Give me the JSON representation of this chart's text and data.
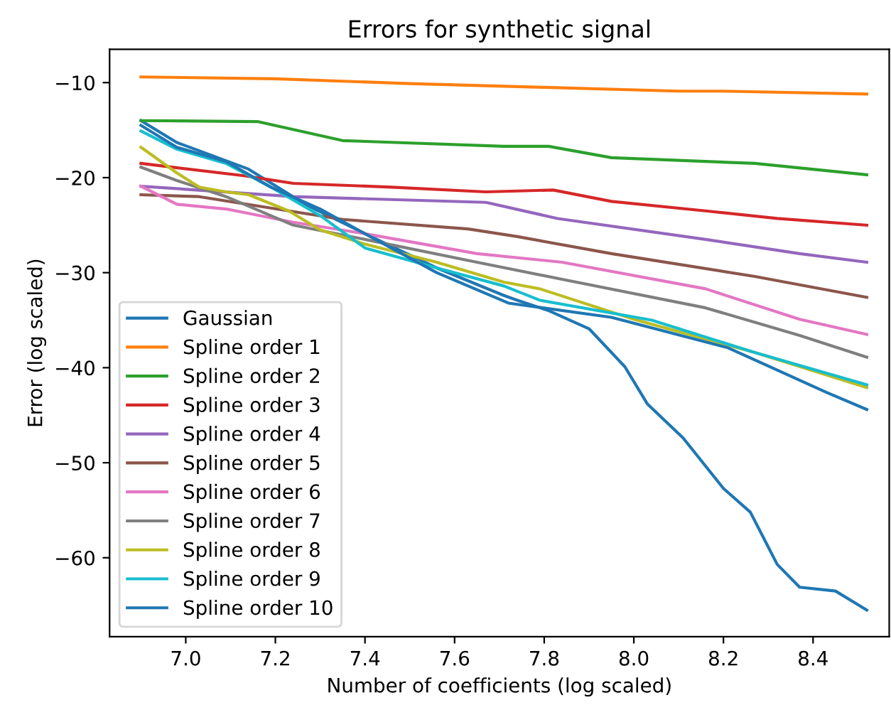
{
  "chart_data": {
    "type": "line",
    "title": "Errors for synthetic signal",
    "xlabel": "Number of coefficients (log scaled)",
    "ylabel": "Error (log scaled)",
    "xlim": [
      6.83,
      8.57
    ],
    "ylim": [
      -68.3,
      -6.5
    ],
    "xticks": [
      {
        "value": 7,
        "label": "7.0"
      },
      7.2,
      7.4,
      7.6,
      7.8,
      {
        "value": 8,
        "label": "8.0"
      },
      8.2,
      8.4
    ],
    "yticks": [
      -10,
      -20,
      -30,
      -40,
      -50,
      -60
    ],
    "grid": false,
    "legend": "bottom left",
    "line_style": "solid",
    "marker": "none",
    "series": [
      {
        "name": "Gaussian",
        "color": "#1f77b4",
        "x": [
          6.9,
          6.98,
          7.14,
          7.27,
          7.4,
          7.56,
          7.71,
          7.74,
          7.81,
          7.9,
          7.98,
          8.03,
          8.11,
          8.2,
          8.26,
          8.32,
          8.37,
          8.45,
          8.52
        ],
        "values": [
          -14.0,
          -16.3,
          -19.1,
          -22.9,
          -25.9,
          -29.5,
          -32.4,
          -32.9,
          -34.0,
          -35.9,
          -39.9,
          -43.8,
          -47.4,
          -52.7,
          -55.2,
          -60.7,
          -63.1,
          -63.5,
          -65.5
        ]
      },
      {
        "name": "Spline order 1",
        "color": "#ff7f0e",
        "x": [
          6.9,
          7.2,
          7.5,
          7.8,
          8.1,
          8.2,
          8.52
        ],
        "values": [
          -9.4,
          -9.6,
          -10.1,
          -10.5,
          -10.9,
          -10.9,
          -11.2
        ]
      },
      {
        "name": "Spline order 2",
        "color": "#2ca02c",
        "x": [
          6.9,
          7.16,
          7.35,
          7.71,
          7.81,
          7.95,
          8.27,
          8.52
        ],
        "values": [
          -14.0,
          -14.1,
          -16.1,
          -16.7,
          -16.7,
          -17.9,
          -18.5,
          -19.7
        ]
      },
      {
        "name": "Spline order 3",
        "color": "#d62728",
        "x": [
          6.9,
          7.13,
          7.24,
          7.46,
          7.67,
          7.82,
          7.95,
          8.16,
          8.32,
          8.52
        ],
        "values": [
          -18.5,
          -19.8,
          -20.6,
          -21.0,
          -21.5,
          -21.3,
          -22.5,
          -23.5,
          -24.3,
          -25.0
        ]
      },
      {
        "name": "Spline order 4",
        "color": "#9467bd",
        "x": [
          6.9,
          7.24,
          7.67,
          7.83,
          8.16,
          8.37,
          8.52
        ],
        "values": [
          -20.9,
          -22.0,
          -22.6,
          -24.3,
          -26.5,
          -28.0,
          -28.9
        ]
      },
      {
        "name": "Spline order 5",
        "color": "#8c564b",
        "x": [
          6.9,
          7.03,
          7.35,
          7.63,
          7.74,
          7.95,
          8.27,
          8.52
        ],
        "values": [
          -21.8,
          -22.0,
          -24.4,
          -25.4,
          -26.2,
          -28.0,
          -30.4,
          -32.6
        ]
      },
      {
        "name": "Spline order 6",
        "color": "#e377c2",
        "x": [
          6.9,
          6.98,
          7.09,
          7.24,
          7.4,
          7.65,
          7.84,
          8.16,
          8.37,
          8.52
        ],
        "values": [
          -20.9,
          -22.8,
          -23.3,
          -24.7,
          -25.9,
          -28.0,
          -28.9,
          -31.7,
          -34.9,
          -36.5
        ]
      },
      {
        "name": "Spline order 7",
        "color": "#7f7f7f",
        "x": [
          6.9,
          6.98,
          7.09,
          7.24,
          7.4,
          7.65,
          7.84,
          8.16,
          8.37,
          8.52
        ],
        "values": [
          -18.9,
          -20.3,
          -22.0,
          -25.0,
          -26.5,
          -28.9,
          -30.7,
          -33.7,
          -36.6,
          -38.9
        ]
      },
      {
        "name": "Spline order 8",
        "color": "#bcbd22",
        "x": [
          6.9,
          6.98,
          7.03,
          7.09,
          7.14,
          7.23,
          7.3,
          7.4,
          7.56,
          7.71,
          7.79,
          8.0,
          8.27,
          8.52
        ],
        "values": [
          -16.8,
          -19.5,
          -21.0,
          -21.5,
          -21.8,
          -23.5,
          -25.5,
          -27.0,
          -28.9,
          -31.0,
          -31.7,
          -34.9,
          -38.4,
          -42.1
        ]
      },
      {
        "name": "Spline order 9",
        "color": "#17becf",
        "x": [
          6.9,
          6.98,
          7.09,
          7.19,
          7.3,
          7.4,
          7.56,
          7.71,
          7.79,
          8.04,
          8.27,
          8.52
        ],
        "values": [
          -15.1,
          -17.0,
          -18.5,
          -21.0,
          -24.0,
          -27.4,
          -29.5,
          -31.4,
          -32.9,
          -35.0,
          -38.4,
          -41.8
        ]
      },
      {
        "name": "Spline order 10",
        "color": "#1f77b4",
        "x": [
          6.9,
          6.98,
          7.09,
          7.19,
          7.3,
          7.4,
          7.56,
          7.72,
          7.95,
          8.21,
          8.43,
          8.52
        ],
        "values": [
          -14.5,
          -16.8,
          -18.3,
          -21.0,
          -23.3,
          -25.9,
          -30.0,
          -33.2,
          -34.7,
          -37.9,
          -42.6,
          -44.4
        ]
      }
    ]
  }
}
